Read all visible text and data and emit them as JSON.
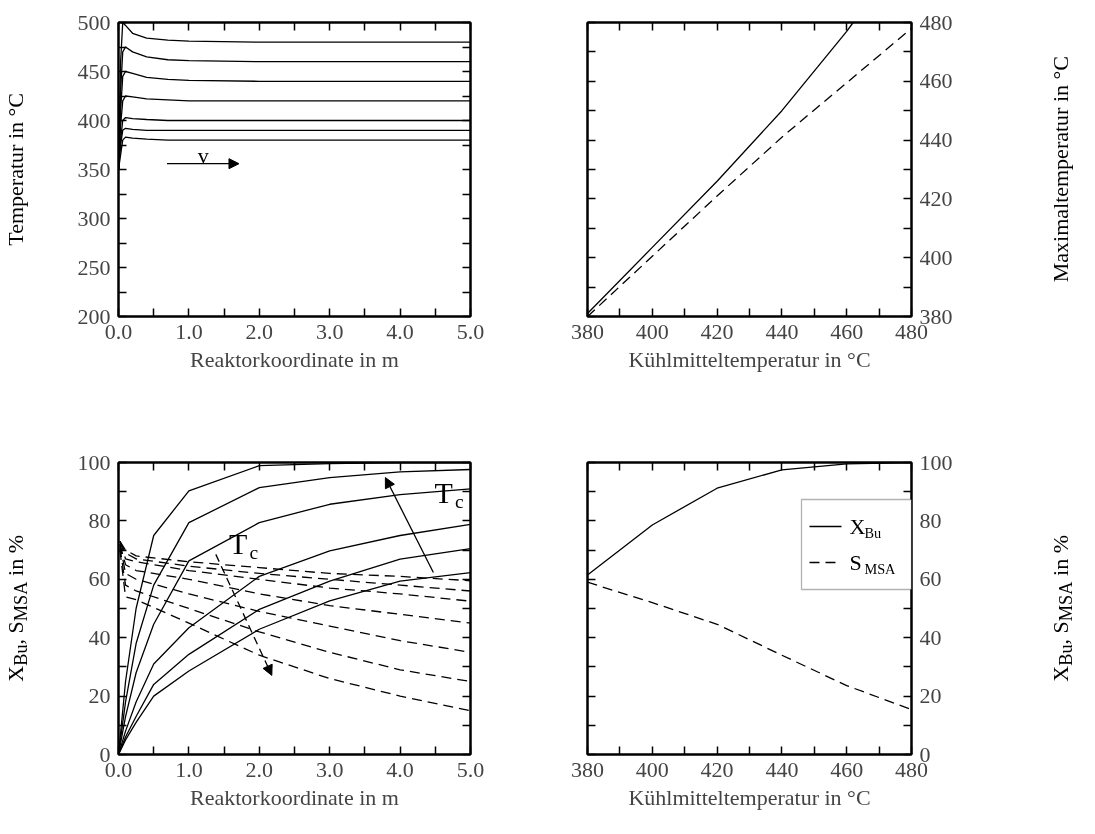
{
  "chart_data": [
    {
      "type": "line",
      "xlabel": "Reaktorkoordinate in m",
      "ylabel": "Temperatur in °C",
      "xlim": [
        0,
        5
      ],
      "ylim": [
        200,
        500
      ],
      "xticks": [
        {
          "value": 0,
          "label": "0.0"
        },
        {
          "value": 0.5,
          "label": null
        },
        {
          "value": 1,
          "label": "1.0"
        },
        {
          "value": 1.5,
          "label": null
        },
        {
          "value": 2,
          "label": "2.0"
        },
        {
          "value": 2.5,
          "label": null
        },
        {
          "value": 3,
          "label": "3.0"
        },
        {
          "value": 3.5,
          "label": null
        },
        {
          "value": 4,
          "label": "4.0"
        },
        {
          "value": 4.5,
          "label": null
        },
        {
          "value": 5,
          "label": "5.0"
        }
      ],
      "yticks": [
        200,
        {
          "value": 225,
          "label": null
        },
        250,
        {
          "value": 275,
          "label": null
        },
        300,
        {
          "value": 325,
          "label": null
        },
        350,
        {
          "value": 375,
          "label": null
        },
        400,
        {
          "value": 425,
          "label": null
        },
        450,
        {
          "value": 475,
          "label": null
        },
        500
      ],
      "x": [
        0,
        0.03,
        0.06,
        0.1,
        0.2,
        0.4,
        0.7,
        1.0,
        2.0,
        5.0
      ],
      "line_style": "solid",
      "series": [
        {
          "color": "#000000",
          "values": [
            350,
            460,
            500,
            497,
            489,
            484,
            482,
            481,
            480,
            480
          ]
        },
        {
          "color": "#000000",
          "values": [
            350,
            430,
            470,
            475,
            470,
            465,
            462,
            461,
            460,
            460
          ]
        },
        {
          "color": "#000000",
          "values": [
            350,
            410,
            445,
            450,
            448,
            444,
            442,
            441,
            440,
            440
          ]
        },
        {
          "color": "#000000",
          "values": [
            350,
            395,
            420,
            425,
            424,
            422,
            421,
            420,
            420,
            420
          ]
        },
        {
          "color": "#000000",
          "values": [
            350,
            380,
            400,
            403,
            402,
            401,
            400,
            400,
            400,
            400
          ]
        },
        {
          "color": "#000000",
          "values": [
            350,
            375,
            390,
            392,
            391,
            390,
            390,
            390,
            390,
            390
          ]
        },
        {
          "color": "#000000",
          "values": [
            350,
            365,
            380,
            383,
            382,
            381,
            380,
            380,
            380,
            380
          ]
        }
      ],
      "annotations": [
        "v"
      ]
    },
    {
      "type": "line",
      "xlabel": "Kühlmitteltemperatur in °C",
      "y2label": "Maximaltemperatur in °C",
      "xlim": [
        380,
        480
      ],
      "y2lim": [
        380,
        480
      ],
      "xticks": [
        380,
        {
          "value": 390,
          "label": null
        },
        400,
        {
          "value": 410,
          "label": null
        },
        420,
        {
          "value": 430,
          "label": null
        },
        440,
        {
          "value": 450,
          "label": null
        },
        460,
        {
          "value": 470,
          "label": null
        },
        480
      ],
      "y2ticks": [
        380,
        {
          "value": 390,
          "label": null
        },
        400,
        {
          "value": 410,
          "label": null
        },
        420,
        {
          "value": 430,
          "label": null
        },
        440,
        {
          "value": 450,
          "label": null
        },
        460,
        {
          "value": 470,
          "label": null
        },
        480
      ],
      "series": [
        {
          "color": "#000000",
          "axis": "y2",
          "line_style": "solid",
          "x": [
            380,
            400,
            420,
            440,
            460,
            462
          ],
          "values": [
            381,
            403.5,
            426,
            450,
            477,
            480
          ]
        },
        {
          "color": "#000000",
          "axis": "y2",
          "line_style": "dashed",
          "x": [
            380,
            400,
            420,
            440,
            460,
            480
          ],
          "values": [
            380,
            400.5,
            421,
            441,
            459.5,
            478
          ]
        }
      ]
    },
    {
      "type": "line",
      "xlabel": "Reaktorkoordinate in m",
      "ylabel": "X$_{Bu}$, S$_{MSA}$ in %",
      "xlim": [
        0,
        5
      ],
      "ylim": [
        0,
        100
      ],
      "xticks": [
        {
          "value": 0,
          "label": "0.0"
        },
        {
          "value": 0.5,
          "label": null
        },
        {
          "value": 1,
          "label": "1.0"
        },
        {
          "value": 1.5,
          "label": null
        },
        {
          "value": 2,
          "label": "2.0"
        },
        {
          "value": 2.5,
          "label": null
        },
        {
          "value": 3,
          "label": "3.0"
        },
        {
          "value": 3.5,
          "label": null
        },
        {
          "value": 4,
          "label": "4.0"
        },
        {
          "value": 4.5,
          "label": null
        },
        {
          "value": 5,
          "label": "5.0"
        }
      ],
      "yticks": [
        0,
        {
          "value": 10,
          "label": null
        },
        20,
        {
          "value": 30,
          "label": null
        },
        40,
        {
          "value": 50,
          "label": null
        },
        60,
        {
          "value": 70,
          "label": null
        },
        80,
        {
          "value": 90,
          "label": null
        },
        100
      ],
      "series": [
        {
          "color": "#000000",
          "line_style": "solid",
          "x": [
            0,
            0.1,
            0.25,
            0.5,
            1,
            2,
            3,
            4,
            5
          ],
          "values": [
            0,
            25,
            50,
            75,
            90.3,
            98.9,
            99.6,
            100,
            100
          ]
        },
        {
          "color": "#000000",
          "line_style": "solid",
          "x": [
            0,
            0.1,
            0.25,
            0.5,
            1,
            2,
            3,
            4,
            5
          ],
          "values": [
            0,
            18,
            38,
            58,
            79.4,
            91.4,
            94.8,
            96.8,
            97.6
          ]
        },
        {
          "color": "#000000",
          "line_style": "solid",
          "x": [
            0,
            0.1,
            0.25,
            0.5,
            1,
            2,
            3,
            4,
            5
          ],
          "values": [
            0,
            13,
            28,
            44.6,
            66.3,
            79.4,
            85.7,
            89,
            91
          ]
        },
        {
          "color": "#000000",
          "line_style": "solid",
          "x": [
            0,
            0.1,
            0.25,
            0.5,
            1,
            2,
            3,
            4,
            5
          ],
          "values": [
            0,
            8,
            18,
            31,
            43.4,
            61,
            69.7,
            75,
            78.8
          ]
        },
        {
          "color": "#000000",
          "line_style": "solid",
          "x": [
            0,
            0.1,
            0.25,
            0.5,
            1,
            2,
            3,
            4,
            5
          ],
          "values": [
            0,
            6,
            13,
            24,
            34.3,
            49.7,
            59.4,
            66.9,
            70.5
          ]
        },
        {
          "color": "#000000",
          "line_style": "solid",
          "x": [
            0,
            0.1,
            0.25,
            0.5,
            1,
            2,
            3,
            4,
            5
          ],
          "values": [
            0,
            5,
            11,
            20,
            28.6,
            42.9,
            52.6,
            59.4,
            62.3
          ]
        },
        {
          "color": "#000000",
          "line_style": "dashed",
          "x": [
            0.02,
            0.1,
            0.25,
            1,
            2,
            3,
            4,
            5
          ],
          "values": [
            73,
            70,
            68,
            66,
            64,
            62,
            61,
            59.5
          ]
        },
        {
          "color": "#000000",
          "line_style": "dashed",
          "x": [
            0.02,
            0.1,
            0.25,
            1,
            2,
            3,
            4,
            5
          ],
          "values": [
            73,
            69,
            67,
            64.5,
            62,
            60,
            58,
            56
          ]
        },
        {
          "color": "#000000",
          "line_style": "dashed",
          "x": [
            0.02,
            0.1,
            0.25,
            1,
            2,
            3,
            4,
            5
          ],
          "values": [
            73,
            67,
            66,
            63,
            60,
            57,
            55,
            52.5
          ]
        },
        {
          "color": "#000000",
          "line_style": "dashed",
          "x": [
            0.02,
            0.1,
            0.25,
            1,
            2,
            3,
            4,
            5
          ],
          "values": [
            72,
            65,
            63,
            60,
            55,
            51,
            48,
            45
          ]
        },
        {
          "color": "#000000",
          "line_style": "dashed",
          "x": [
            0.02,
            0.1,
            0.25,
            1,
            2,
            3,
            4,
            5
          ],
          "values": [
            72,
            62,
            60,
            55,
            49,
            44,
            39,
            35
          ]
        },
        {
          "color": "#000000",
          "line_style": "dashed",
          "x": [
            0.02,
            0.1,
            0.25,
            1,
            2,
            3,
            4,
            5
          ],
          "values": [
            71,
            58,
            56,
            50,
            42,
            35,
            29,
            25
          ]
        },
        {
          "color": "#000000",
          "line_style": "dashed",
          "x": [
            0.02,
            0.1,
            0.25,
            1,
            2,
            3,
            4,
            5
          ],
          "values": [
            70,
            54,
            53,
            45,
            34,
            26,
            20,
            15
          ]
        }
      ],
      "annotations": [
        {
          "text": "T$_{c}$",
          "x": 4.7,
          "y": 89.7
        },
        "T$_{c}$"
      ]
    },
    {
      "type": "line",
      "xlabel": "Kühlmitteltemperatur in °C",
      "y2label": "X$_{Bu}$, S$_{MSA}$ in %",
      "xlim": [
        380,
        480
      ],
      "y2lim": [
        0,
        100
      ],
      "xticks": [
        380,
        {
          "value": 390,
          "label": null
        },
        400,
        {
          "value": 410,
          "label": null
        },
        420,
        {
          "value": 430,
          "label": null
        },
        440,
        {
          "value": 450,
          "label": null
        },
        460,
        {
          "value": 470,
          "label": null
        },
        480
      ],
      "y2ticks": [
        0,
        {
          "value": 10,
          "label": null
        },
        20,
        {
          "value": 30,
          "label": null
        },
        40,
        {
          "value": 50,
          "label": null
        },
        60,
        {
          "value": 70,
          "label": null
        },
        80,
        {
          "value": 90,
          "label": null
        },
        100
      ],
      "x": [
        380,
        400,
        420,
        440,
        460,
        480
      ],
      "legend": "top right",
      "series": [
        {
          "name": "X$_{Bu}$",
          "color": "#000000",
          "axis": "y2",
          "line_style": "solid",
          "values": [
            61.5,
            78.6,
            91.2,
            97.5,
            99.5,
            100
          ]
        },
        {
          "name": "S$_{MSA}$",
          "color": "#000000",
          "axis": "y2",
          "line_style": "dashed",
          "values": [
            59,
            52,
            44.6,
            34,
            23.6,
            15.4
          ]
        }
      ]
    }
  ]
}
